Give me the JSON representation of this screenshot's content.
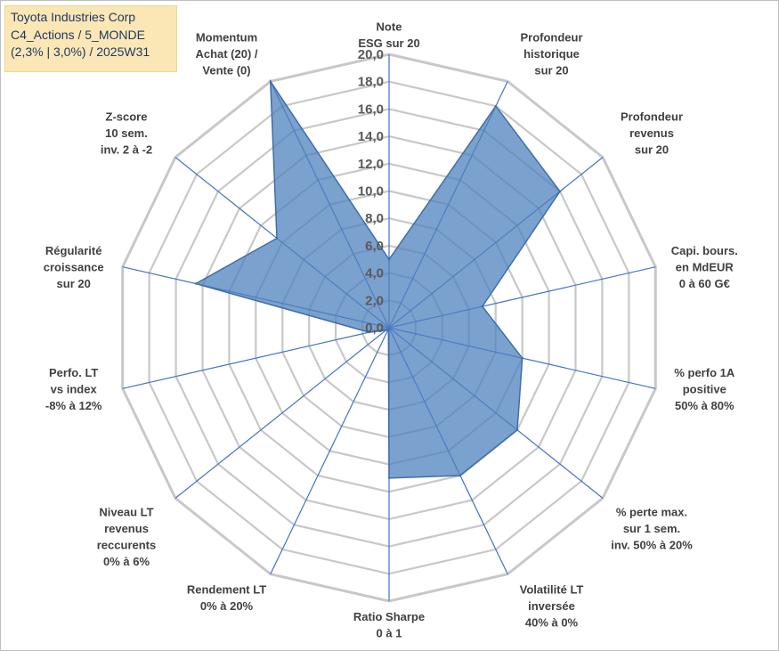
{
  "header": {
    "lines": [
      "Toyota Industries Corp",
      "C4_Actions / 5_MONDE",
      "(2,3% | 3,0%) / 2025W31"
    ]
  },
  "chart_data": {
    "type": "radar",
    "axes": [
      [
        "Note",
        "ESG sur 20"
      ],
      [
        "Profondeur",
        "historique",
        "sur 20"
      ],
      [
        "Profondeur",
        "revenus",
        "sur 20"
      ],
      [
        "Capi. bours.",
        "en MdEUR",
        "0 à 60 G€"
      ],
      [
        "% perfo 1A",
        "positive",
        "50% à 80%"
      ],
      [
        "% perte max.",
        "sur 1 sem.",
        "inv. 50% à 20%"
      ],
      [
        "Volatilité LT",
        "inversée",
        "40% à 0%"
      ],
      [
        "Ratio Sharpe",
        "0 à 1"
      ],
      [
        "Rendement LT",
        "0% à 20%"
      ],
      [
        "Niveau LT",
        "revenus",
        "reccurents",
        "0% à 6%"
      ],
      [
        "Perfo. LT",
        "vs index",
        "-8% à 12%"
      ],
      [
        "Régularité",
        "croissance",
        "sur 20"
      ],
      [
        "Z-score",
        "10 sem.",
        "inv. 2 à -2"
      ],
      [
        "Momentum",
        "Achat (20) /",
        "Vente (0)"
      ]
    ],
    "values": [
      5.0,
      18.0,
      16.0,
      7.0,
      10.0,
      12.0,
      12.0,
      11.0,
      0.1,
      0.3,
      1.5,
      14.5,
      10.5,
      20.0
    ],
    "ticks": [
      "0,0",
      "2,0",
      "4,0",
      "6,0",
      "8,0",
      "10,0",
      "12,0",
      "14,0",
      "16,0",
      "18,0",
      "20,0"
    ],
    "ylim": [
      0,
      20
    ],
    "grid": true,
    "colors": {
      "fill": "#4f81bd",
      "grid": "#c8c8c8",
      "spoke": "#4472c4"
    }
  }
}
